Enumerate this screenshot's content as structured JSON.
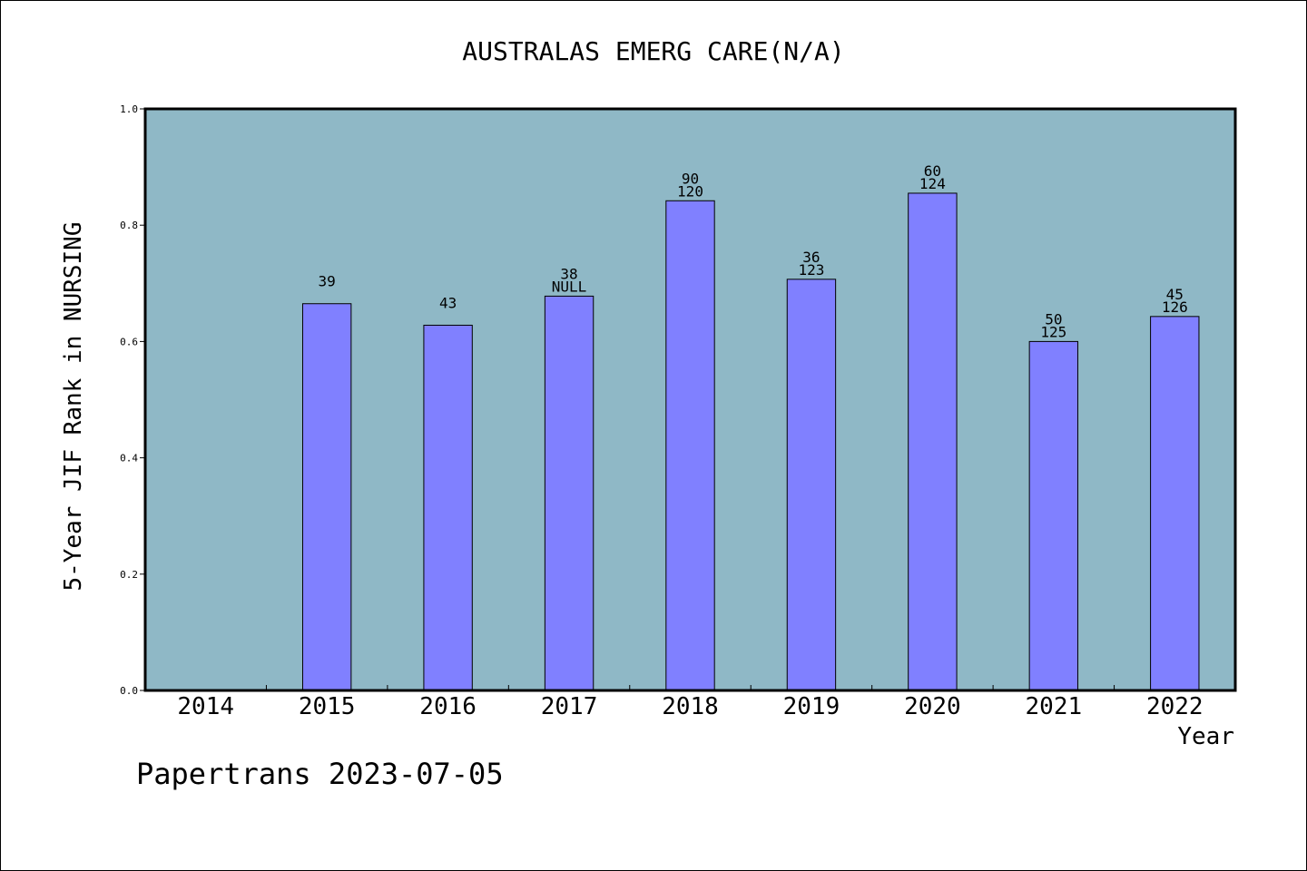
{
  "chart_data": {
    "type": "bar",
    "title": "AUSTRALAS EMERG CARE(N/A)",
    "xlabel": "Year",
    "ylabel": "5-Year JIF Rank in NURSING",
    "ylim": [
      0,
      1.0
    ],
    "yticks": [
      "0.0",
      "0.2",
      "0.4",
      "0.6",
      "0.8",
      "1.0"
    ],
    "ytick_values": [
      0,
      0.2,
      0.4,
      0.6,
      0.8,
      1.0
    ],
    "categories": [
      "2014",
      "2015",
      "2016",
      "2017",
      "2018",
      "2019",
      "2020",
      "2021",
      "2022"
    ],
    "values": [
      null,
      0.665,
      0.628,
      0.678,
      0.842,
      0.707,
      0.855,
      0.6,
      0.643
    ],
    "labels_top": [
      "",
      "39",
      "43",
      "38",
      "90",
      "36",
      "60",
      "50",
      "45"
    ],
    "labels_bottom": [
      "",
      "",
      "",
      "NULL",
      "120",
      "123",
      "124",
      "125",
      "126"
    ],
    "grid": false,
    "colors": {
      "plot_bg": "#8fb8c6",
      "bar": "#8080ff",
      "bar_edge": "#000000"
    }
  },
  "footer": {
    "credit": "Papertrans 2023-07-05"
  }
}
